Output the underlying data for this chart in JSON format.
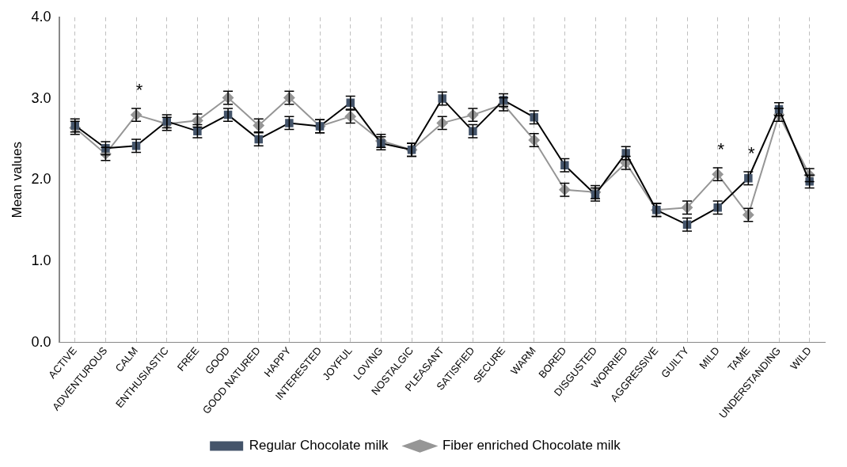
{
  "chart_data": {
    "type": "line",
    "ylabel": "Mean values",
    "categories": [
      "ACTIVE",
      "ADVENTUROUS",
      "CALM",
      "ENTHUSIASTIC",
      "FREE",
      "GOOD",
      "GOOD NATURED",
      "HAPPY",
      "INTERESTED",
      "JOYFUL",
      "LOVING",
      "NOSTALGIC",
      "PLEASANT",
      "SATISFIED",
      "SECURE",
      "WARM",
      "BORED",
      "DISGUSTED",
      "WORRIED",
      "AGGRESSIVE",
      "GUILTY",
      "MILD",
      "TAME",
      "UNDERSTANDING",
      "WILD"
    ],
    "series": [
      {
        "name": "Regular Chocolate milk",
        "color": "#44546a",
        "marker": "square",
        "values": [
          2.67,
          2.39,
          2.42,
          2.72,
          2.6,
          2.8,
          2.5,
          2.7,
          2.66,
          2.95,
          2.45,
          2.37,
          3.0,
          2.6,
          2.98,
          2.77,
          2.18,
          1.82,
          2.33,
          1.63,
          1.45,
          1.66,
          2.02,
          2.87,
          1.98
        ],
        "errors": [
          0.08,
          0.08,
          0.08,
          0.08,
          0.08,
          0.08,
          0.08,
          0.08,
          0.08,
          0.08,
          0.08,
          0.08,
          0.08,
          0.08,
          0.08,
          0.08,
          0.08,
          0.08,
          0.08,
          0.08,
          0.08,
          0.08,
          0.08,
          0.08,
          0.08
        ]
      },
      {
        "name": "Fiber enriched Chocolate milk",
        "color": "#969696",
        "marker": "diamond",
        "values": [
          2.64,
          2.32,
          2.8,
          2.69,
          2.73,
          3.01,
          2.67,
          3.01,
          2.66,
          2.78,
          2.48,
          2.37,
          2.7,
          2.8,
          2.93,
          2.49,
          1.88,
          1.85,
          2.21,
          1.63,
          1.66,
          2.07,
          1.57,
          2.8,
          2.06
        ],
        "errors": [
          0.08,
          0.08,
          0.08,
          0.08,
          0.08,
          0.08,
          0.08,
          0.08,
          0.08,
          0.08,
          0.08,
          0.08,
          0.08,
          0.08,
          0.08,
          0.08,
          0.08,
          0.08,
          0.08,
          0.08,
          0.08,
          0.08,
          0.08,
          0.08,
          0.08
        ]
      }
    ],
    "ylim": [
      0,
      4
    ],
    "yticks": [
      {
        "value": 0,
        "label": "0.0"
      },
      {
        "value": 1,
        "label": "1.0"
      },
      {
        "value": 2,
        "label": "2.0"
      },
      {
        "value": 3,
        "label": "3.0"
      },
      {
        "value": 4,
        "label": "4.0"
      }
    ],
    "grid": "x",
    "legend": "bottom",
    "annotations": [
      {
        "text": "*",
        "x": "CALM",
        "y": 2.8
      },
      {
        "text": "*",
        "x": "MILD",
        "y": 2.07
      },
      {
        "text": "*",
        "x": "TAME",
        "y": 2.02
      }
    ]
  }
}
